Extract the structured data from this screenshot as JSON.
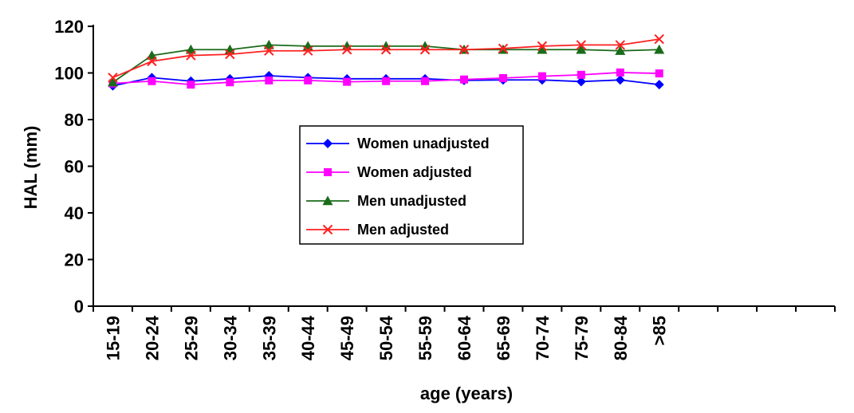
{
  "chart_data": {
    "type": "line",
    "xlabel": "age (years)",
    "ylabel": "HAL (mm)",
    "ylim": [
      0,
      120
    ],
    "yticks": [
      0,
      20,
      40,
      60,
      80,
      100,
      120
    ],
    "categories": [
      "15-19",
      "20-24",
      "25-29",
      "30-34",
      "35-39",
      "40-44",
      "45-49",
      "50-54",
      "55-59",
      "60-64",
      "65-69",
      "70-74",
      "75-79",
      "80-84",
      ">85"
    ],
    "x_slots": 19,
    "legend_position": "center",
    "series": [
      {
        "name": "Women unadjusted",
        "color": "#0000ff",
        "marker": "diamond",
        "values": [
          94.5,
          98,
          96.5,
          97.5,
          98.8,
          98,
          97.5,
          97.5,
          97.5,
          96.8,
          97,
          97,
          96.3,
          97,
          95
        ]
      },
      {
        "name": "Women adjusted",
        "color": "#ff00ff",
        "marker": "square",
        "values": [
          95.5,
          96.5,
          95,
          96,
          96.8,
          96.8,
          96.2,
          96.5,
          96.5,
          97.2,
          97.8,
          98.6,
          99.2,
          100.2,
          99.8
        ]
      },
      {
        "name": "Men unadjusted",
        "color": "#1a6b1a",
        "marker": "triangle",
        "values": [
          96,
          107.5,
          110,
          110,
          112,
          111.5,
          111.5,
          111.5,
          111.5,
          110,
          110,
          110,
          110,
          109.5,
          110
        ]
      },
      {
        "name": "Men adjusted",
        "color": "#ff2020",
        "marker": "x",
        "values": [
          98,
          105,
          107.5,
          108,
          109.5,
          109.5,
          110,
          110,
          110,
          110,
          110.5,
          111.5,
          112,
          112,
          114.5
        ]
      }
    ]
  }
}
